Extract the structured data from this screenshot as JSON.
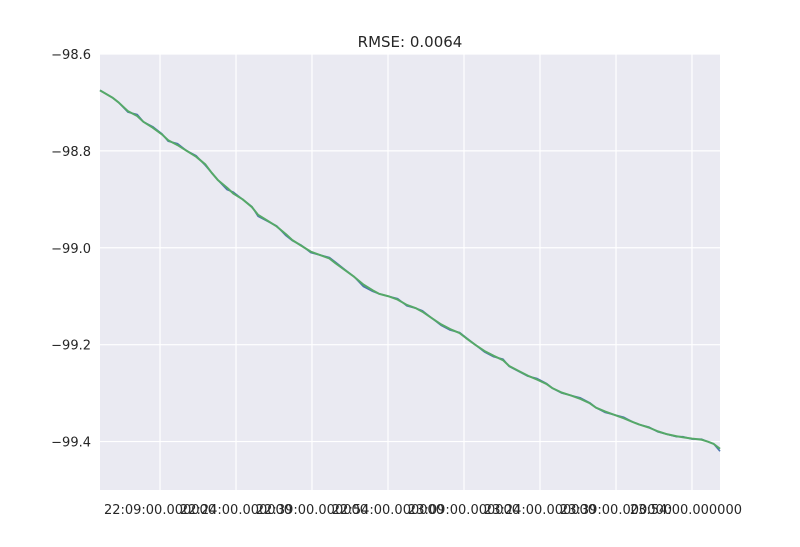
{
  "chart_data": {
    "type": "line",
    "title": "RMSE: 0.0064",
    "xlabel": "",
    "ylabel": "",
    "grid": true,
    "legend": "none",
    "style": {
      "background": "#eaeaf2",
      "grid_color": "#ffffff",
      "series_colors": [
        "#4c72b0",
        "#55a868"
      ]
    },
    "ylim": [
      -99.5,
      -98.6
    ],
    "xlim": [
      0,
      1
    ],
    "y_ticks": [
      {
        "value": -98.6,
        "label": "−98.6"
      },
      {
        "value": -98.8,
        "label": "−98.8"
      },
      {
        "value": -99.0,
        "label": "−99.0"
      },
      {
        "value": -99.2,
        "label": "−99.2"
      },
      {
        "value": -99.4,
        "label": "−99.4"
      }
    ],
    "x_ticks": [
      {
        "value": 0.0968,
        "label": "22:09:00.000000"
      },
      {
        "value": 0.2194,
        "label": "22:24:00.000000"
      },
      {
        "value": 0.3419,
        "label": "22:39:00.000000"
      },
      {
        "value": 0.4645,
        "label": "22:54:00.000000"
      },
      {
        "value": 0.5871,
        "label": "23:09:00.000000"
      },
      {
        "value": 0.7097,
        "label": "23:24:00.000000"
      },
      {
        "value": 0.8323,
        "label": "23:39:00.000000"
      },
      {
        "value": 0.9548,
        "label": "23:54:00.000000"
      }
    ],
    "series": [
      {
        "color": "#4c72b0",
        "x": [
          0,
          0.02,
          0.03,
          0.045,
          0.06,
          0.07,
          0.085,
          0.1,
          0.11,
          0.125,
          0.14,
          0.155,
          0.17,
          0.18,
          0.19,
          0.205,
          0.215,
          0.23,
          0.245,
          0.255,
          0.27,
          0.285,
          0.3,
          0.31,
          0.325,
          0.34,
          0.355,
          0.37,
          0.38,
          0.395,
          0.41,
          0.425,
          0.44,
          0.45,
          0.465,
          0.48,
          0.495,
          0.51,
          0.52,
          0.535,
          0.55,
          0.565,
          0.58,
          0.59,
          0.605,
          0.62,
          0.635,
          0.65,
          0.66,
          0.675,
          0.69,
          0.705,
          0.72,
          0.73,
          0.745,
          0.76,
          0.775,
          0.79,
          0.8,
          0.815,
          0.83,
          0.845,
          0.86,
          0.87,
          0.885,
          0.9,
          0.915,
          0.93,
          0.94,
          0.955,
          0.97,
          0.98,
          0.99,
          1.0
        ],
        "y": [
          -98.675,
          -98.69,
          -98.7,
          -98.72,
          -98.725,
          -98.74,
          -98.75,
          -98.765,
          -98.78,
          -98.785,
          -98.8,
          -98.81,
          -98.83,
          -98.845,
          -98.86,
          -98.88,
          -98.885,
          -98.9,
          -98.915,
          -98.935,
          -98.945,
          -98.955,
          -98.975,
          -98.985,
          -98.995,
          -99.01,
          -99.015,
          -99.02,
          -99.03,
          -99.045,
          -99.06,
          -99.08,
          -99.09,
          -99.095,
          -99.1,
          -99.105,
          -99.12,
          -99.125,
          -99.13,
          -99.145,
          -99.16,
          -99.17,
          -99.175,
          -99.185,
          -99.2,
          -99.215,
          -99.225,
          -99.23,
          -99.245,
          -99.255,
          -99.265,
          -99.27,
          -99.28,
          -99.29,
          -99.3,
          -99.305,
          -99.31,
          -99.32,
          -99.33,
          -99.34,
          -99.345,
          -99.35,
          -99.36,
          -99.365,
          -99.37,
          -99.38,
          -99.385,
          -99.39,
          -99.39,
          -99.395,
          -99.395,
          -99.4,
          -99.405,
          -99.42
        ]
      },
      {
        "color": "#55a868",
        "x": [
          0,
          0.02,
          0.03,
          0.045,
          0.06,
          0.07,
          0.085,
          0.1,
          0.11,
          0.125,
          0.14,
          0.155,
          0.17,
          0.18,
          0.19,
          0.205,
          0.215,
          0.23,
          0.245,
          0.255,
          0.27,
          0.285,
          0.3,
          0.31,
          0.325,
          0.34,
          0.355,
          0.37,
          0.38,
          0.395,
          0.41,
          0.425,
          0.44,
          0.45,
          0.465,
          0.48,
          0.495,
          0.51,
          0.52,
          0.535,
          0.55,
          0.565,
          0.58,
          0.59,
          0.605,
          0.62,
          0.635,
          0.65,
          0.66,
          0.675,
          0.69,
          0.705,
          0.72,
          0.73,
          0.745,
          0.76,
          0.775,
          0.79,
          0.8,
          0.815,
          0.83,
          0.845,
          0.86,
          0.87,
          0.885,
          0.9,
          0.915,
          0.93,
          0.94,
          0.955,
          0.97,
          0.98,
          0.99,
          1.0
        ],
        "y": [
          -98.675,
          -98.69,
          -98.7,
          -98.718,
          -98.728,
          -98.74,
          -98.752,
          -98.766,
          -98.778,
          -98.788,
          -98.8,
          -98.812,
          -98.828,
          -98.845,
          -98.86,
          -98.876,
          -98.888,
          -98.9,
          -98.916,
          -98.932,
          -98.944,
          -98.956,
          -98.972,
          -98.984,
          -98.996,
          -99.008,
          -99.015,
          -99.022,
          -99.032,
          -99.046,
          -99.06,
          -99.076,
          -99.088,
          -99.095,
          -99.1,
          -99.107,
          -99.118,
          -99.125,
          -99.132,
          -99.145,
          -99.158,
          -99.168,
          -99.176,
          -99.186,
          -99.2,
          -99.213,
          -99.223,
          -99.232,
          -99.244,
          -99.254,
          -99.264,
          -99.272,
          -99.281,
          -99.29,
          -99.299,
          -99.305,
          -99.312,
          -99.321,
          -99.33,
          -99.338,
          -99.345,
          -99.352,
          -99.36,
          -99.365,
          -99.371,
          -99.379,
          -99.385,
          -99.389,
          -99.391,
          -99.394,
          -99.396,
          -99.4,
          -99.405,
          -99.415
        ]
      }
    ]
  }
}
